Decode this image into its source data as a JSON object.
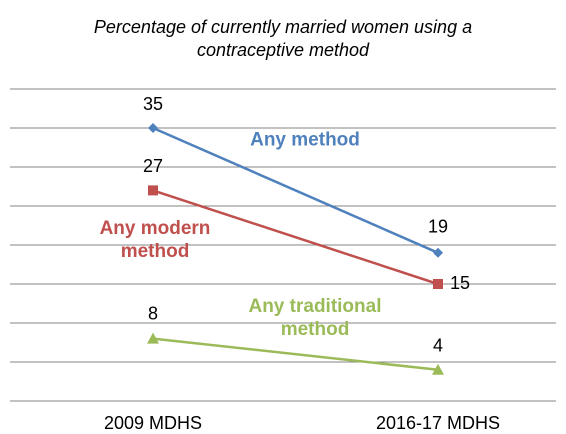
{
  "chart_data": {
    "type": "line",
    "title": "Percentage of currently married women using a contraceptive method",
    "categories": [
      "2009 MDHS",
      "2016-17 MDHS"
    ],
    "series": [
      {
        "name": "Any method",
        "color": "#4f81bd",
        "marker": "diamond",
        "values": [
          35,
          19
        ]
      },
      {
        "name": "Any modern method",
        "color": "#c0504d",
        "marker": "square",
        "values": [
          27,
          15
        ]
      },
      {
        "name": "Any traditional method",
        "color": "#9bbb59",
        "marker": "triangle",
        "values": [
          8,
          4
        ]
      }
    ],
    "ylim": [
      0,
      40
    ],
    "yticks": [
      0,
      5,
      10,
      15,
      20,
      25,
      30,
      35,
      40
    ],
    "grid": true
  }
}
